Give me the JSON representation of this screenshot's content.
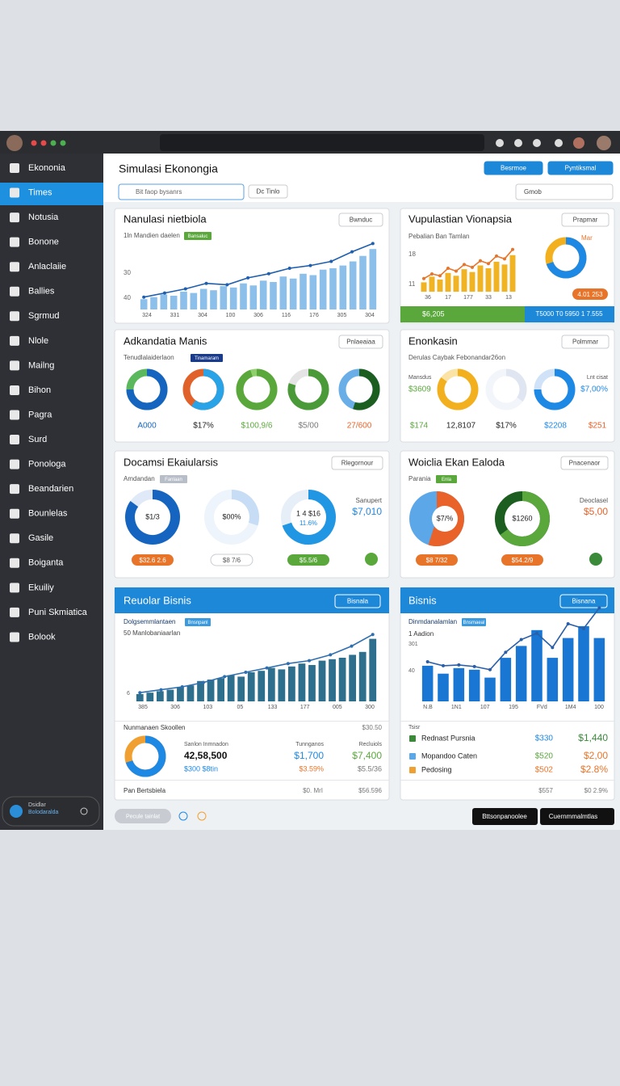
{
  "sidebar": {
    "items": [
      "Ekononia",
      "Times",
      "Notusia",
      "Bonone",
      "Anlaclaiie",
      "Ballies",
      "Sgrmud",
      "Nlole",
      "Mailng",
      "Bihon",
      "Pagra",
      "Surd",
      "Ponologa",
      "Beandarien",
      "Bounlelas",
      "Gasile",
      "Boiganta",
      "Ekuiliy",
      "Puni Skmiatica",
      "Bolook"
    ],
    "footer": [
      "Dsidlar",
      "Bolodaralda"
    ]
  },
  "header": {
    "title": "Simulasi Ekonongia",
    "search": "Bit faop bysanrs",
    "tab": "Dc Tinlo",
    "actions": [
      "Besrmoe",
      "Pyntiksmal"
    ],
    "tool": "Gmob"
  },
  "panels": [
    {
      "title": "Nanulasi nietbiola",
      "button": "Bwnduc",
      "subtitle": "1ln Mandien daelen",
      "badge": "Bansaluc",
      "ylabels": [
        "30",
        "40"
      ],
      "ylim": [
        0,
        100
      ],
      "color": "#8cc0ea",
      "line_color": "#1f5fae",
      "bars": [
        15,
        18,
        22,
        20,
        26,
        24,
        30,
        28,
        34,
        32,
        38,
        35,
        42,
        40,
        48,
        45,
        52,
        50,
        58,
        60,
        64,
        70,
        78,
        88
      ],
      "line": [
        18,
        24,
        30,
        38,
        36,
        46,
        52,
        60,
        64,
        70,
        84,
        96
      ],
      "xlabels": [
        "324",
        "331",
        "304",
        "100",
        "306",
        "116",
        "176",
        "305",
        "304"
      ]
    },
    {
      "title": "Vupulastian Vionapsia",
      "button": "Prapmar",
      "subtitle": "Pebalian Ban Tamlan",
      "ylabels": [
        "18",
        "11"
      ],
      "ylim": [
        0,
        100
      ],
      "color": "#f0b323",
      "line_color": "#e8742a",
      "bars": [
        20,
        32,
        26,
        40,
        34,
        48,
        42,
        56,
        50,
        64,
        58,
        78
      ],
      "line": [
        28,
        38,
        34,
        50,
        44,
        58,
        52,
        66,
        60,
        76,
        70,
        90
      ],
      "xlabels": [
        "36",
        "17",
        "177",
        "33",
        "13"
      ],
      "donut": {
        "value": 70,
        "color": "#1e88e5",
        "color2": "#f2b01e"
      },
      "donut_label": "Mar",
      "pill": "4.01 253",
      "strip": [
        "$6,205",
        "T5000 T0 5950 1 7.555"
      ]
    },
    {
      "title": "Adkandatia Manis",
      "button": "Pnlaeaiaa",
      "subtitle": "Tenudlalaiderlaon",
      "badge": "Tinamaram",
      "donuts": [
        {
          "value": 75,
          "color": "#1565c0",
          "color2": "#5cb85c",
          "label": "A000"
        },
        {
          "value": 60,
          "color": "#29a3e8",
          "color2": "#e0622a",
          "label": "$17%"
        },
        {
          "value": 95,
          "color": "#5aa83c",
          "color2": "#8fd06c",
          "label": "$100,9/6"
        },
        {
          "value": 80,
          "color": "#4a9a3a",
          "color2": "#e4e4e4",
          "label": "$5/00"
        },
        {
          "value": 55,
          "color": "#1b5e20",
          "color2": "#6aaee8",
          "label": "27/600"
        }
      ]
    },
    {
      "title": "Enonkasin",
      "button": "Polmmar",
      "subtitle": "Derulas Caybak Febonandar26on",
      "side": [
        "Mansdus",
        "$3609",
        "Lnt cisat",
        "$7,00%"
      ],
      "donuts": [
        {
          "value": 85,
          "color": "#f2b01e",
          "color2": "#fbe3a6"
        },
        {
          "value": 35,
          "color": "#dfe6f2",
          "color2": "#f2f5fa"
        },
        {
          "value": 75,
          "color": "#1e88e5",
          "color2": "#cfe2f7"
        }
      ],
      "labels": [
        "$174",
        "12,8107",
        "$17%",
        "$2208",
        "$251"
      ]
    },
    {
      "title": "Docamsi Ekaiularsis",
      "button": "Rlegornour",
      "subtitle": "Amdandan",
      "badge": "Fanlaan",
      "donuts": [
        {
          "value": 85,
          "color": "#1565c0",
          "color2": "#dfe9f7",
          "center": "$1/3",
          "pill": "$32.6 2.6"
        },
        {
          "value": 30,
          "color": "#c7dcf5",
          "color2": "#eef4fb",
          "center": "$00%",
          "pill": "$8 7/6"
        },
        {
          "value": 70,
          "color": "#2196e3",
          "color2": "#e6eef8",
          "center": "1 4 $16",
          "pill": "$5.5/6"
        }
      ],
      "sub": "11.6%",
      "side": [
        "Sanupert",
        "$7,010"
      ]
    },
    {
      "title": "Woiclia Ekan Ealoda",
      "button": "Pnacenaor",
      "subtitle": "Parania",
      "badge": "Enla",
      "pie": {
        "value": 55,
        "color": "#e8622a",
        "color2": "#5ba7e8",
        "center": "$7/%",
        "pill": "$8 7/32"
      },
      "donut": {
        "value": 65,
        "color": "#5aa83c",
        "color2": "#1b5e20",
        "center": "$1260",
        "pill": "$54.2/9"
      },
      "side": [
        "Deoclasel",
        "$5,00"
      ]
    },
    {
      "title": "Reuolar Bisnis",
      "button": "Bisnala",
      "subtitle": "Dolgsemmlantaen",
      "badge": "Bnsnpanl",
      "subtitle2": "50 Manlobaniaarlan",
      "ylabels": [
        "6"
      ],
      "ylim": [
        0,
        100
      ],
      "color": "#2e6f8e",
      "line_color": "#2f6fb0",
      "bars": [
        10,
        12,
        14,
        16,
        20,
        22,
        28,
        30,
        32,
        36,
        34,
        40,
        42,
        46,
        44,
        48,
        52,
        50,
        56,
        58,
        60,
        64,
        68,
        86
      ],
      "line": [
        12,
        16,
        20,
        26,
        34,
        40,
        46,
        52,
        56,
        64,
        76,
        92
      ],
      "xlabels": [
        "385",
        "306",
        "103",
        "05",
        "133",
        "177",
        "005",
        "300"
      ],
      "summary": {
        "title": "Nunmanaen Skoollen",
        "value": "$30.50",
        "donut": {
          "value": 70,
          "color": "#1e88e5",
          "color2": "#f0a030"
        },
        "stats": [
          [
            "Sanlon Inmnadon",
            "42,58,500",
            "$300 $8tin"
          ],
          [
            "Tunnganos",
            "$1,700",
            "$3.59%"
          ],
          [
            "Recluiols",
            "$7,400",
            "$5.5/36"
          ]
        ],
        "footer": [
          "Pan Bertsbiela",
          "$0. MrI",
          "$56.596"
        ]
      }
    },
    {
      "title": "Bisnis",
      "button": "Bisnana",
      "subtitle": "Dinmdanalamlan",
      "badge": "Bnsmaeal",
      "subtitle2": "1 Aadion",
      "ylabels": [
        "301",
        "40"
      ],
      "ylim": [
        0,
        100
      ],
      "color": "#1976d2",
      "line_color": "#2a5fa8",
      "bars": [
        45,
        35,
        42,
        40,
        30,
        55,
        70,
        90,
        55,
        80,
        95,
        80
      ],
      "line": [
        50,
        45,
        46,
        44,
        40,
        62,
        78,
        86,
        68,
        98,
        92,
        118
      ],
      "xlabels": [
        "N.B",
        "1N1",
        "107",
        "195",
        "FVd",
        "1M4",
        "100"
      ],
      "table": {
        "head": "Tsisr",
        "rows": [
          [
            "Rednast Pursnia",
            "$330",
            "$1,440"
          ],
          [
            "Mopandoo Caten",
            "$520",
            "$2,00"
          ],
          [
            "Pedosing",
            "$502",
            "$2.8%"
          ]
        ],
        "footer": [
          "$557",
          "$0 2.9%"
        ]
      }
    }
  ],
  "footer": {
    "status": "Pecule tainlat",
    "actions": [
      "Bttsonpanoolee",
      "Cuernmmalmtlas"
    ]
  }
}
